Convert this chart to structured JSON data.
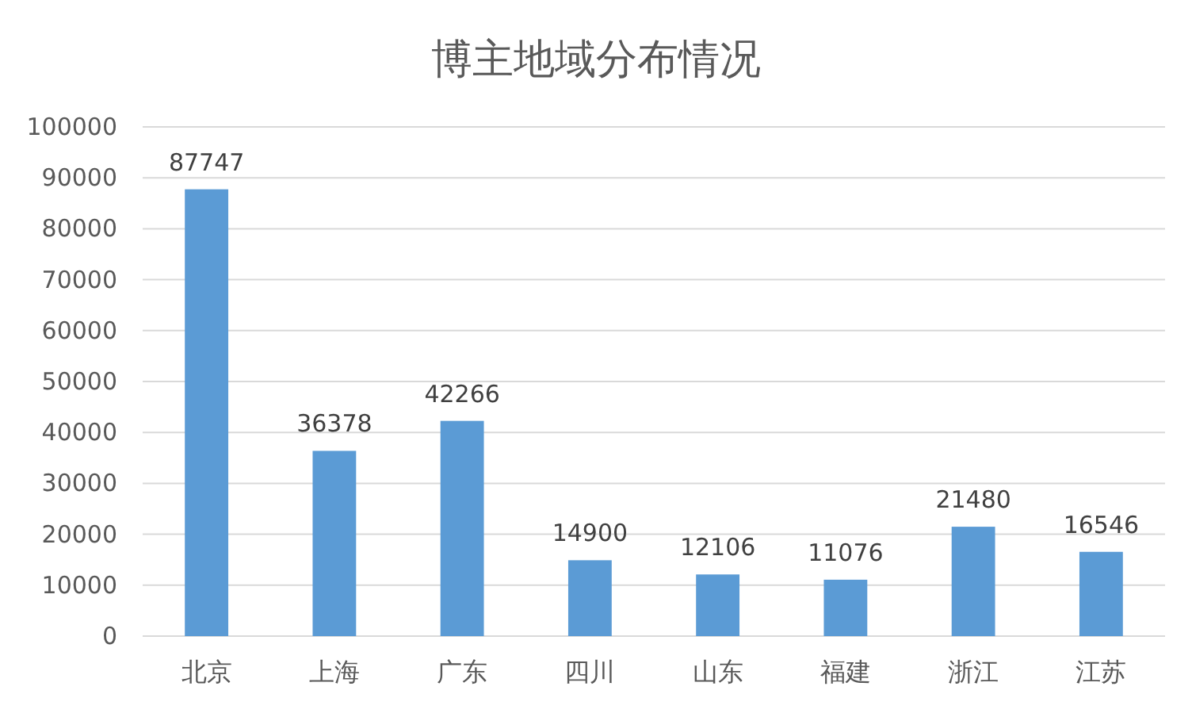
{
  "chart_data": {
    "type": "bar",
    "title": "博主地域分布情况",
    "categories": [
      "北京",
      "上海",
      "广东",
      "四川",
      "山东",
      "福建",
      "浙江",
      "江苏"
    ],
    "values": [
      87747,
      36378,
      42266,
      14900,
      12106,
      11076,
      21480,
      16546
    ],
    "color": "#5b9bd5",
    "ylim": [
      0,
      100000
    ],
    "yticks": [
      0,
      10000,
      20000,
      30000,
      40000,
      50000,
      60000,
      70000,
      80000,
      90000,
      100000
    ],
    "grid": "y",
    "data_labels": true
  }
}
